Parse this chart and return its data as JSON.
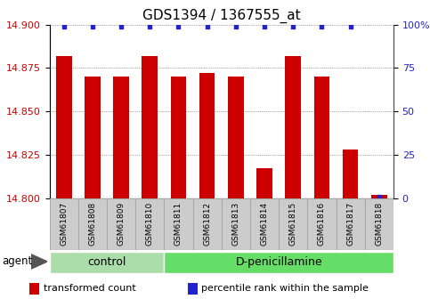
{
  "title": "GDS1394 / 1367555_at",
  "samples": [
    "GSM61807",
    "GSM61808",
    "GSM61809",
    "GSM61810",
    "GSM61811",
    "GSM61812",
    "GSM61813",
    "GSM61814",
    "GSM61815",
    "GSM61816",
    "GSM61817",
    "GSM61818"
  ],
  "red_values": [
    14.882,
    14.87,
    14.87,
    14.882,
    14.87,
    14.872,
    14.87,
    14.817,
    14.882,
    14.87,
    14.828,
    14.802
  ],
  "blue_values": [
    99,
    99,
    99,
    99,
    99,
    99,
    99,
    99,
    99,
    99,
    99,
    1
  ],
  "ylim_left": [
    14.8,
    14.9
  ],
  "ylim_right": [
    0,
    100
  ],
  "left_ticks": [
    14.8,
    14.825,
    14.85,
    14.875,
    14.9
  ],
  "right_ticks": [
    0,
    25,
    50,
    75,
    100
  ],
  "right_tick_labels": [
    "0",
    "25",
    "50",
    "75",
    "100%"
  ],
  "bar_color": "#cc0000",
  "dot_color": "#2222cc",
  "bar_width": 0.55,
  "groups": [
    {
      "label": "control",
      "start": 0,
      "end": 4,
      "color": "#aaddaa"
    },
    {
      "label": "D-penicillamine",
      "start": 4,
      "end": 12,
      "color": "#66dd66"
    }
  ],
  "agent_label": "agent",
  "legend_items": [
    {
      "color": "#cc0000",
      "label": "transformed count"
    },
    {
      "color": "#2222cc",
      "label": "percentile rank within the sample"
    }
  ],
  "title_fontsize": 11,
  "tick_fontsize": 8,
  "sample_label_fontsize": 6.5,
  "group_label_fontsize": 9,
  "legend_fontsize": 8,
  "background_color": "#ffffff",
  "plot_bg": "#ffffff",
  "grid_color": "#555555",
  "sample_box_color": "#cccccc",
  "sample_box_edge": "#aaaaaa"
}
